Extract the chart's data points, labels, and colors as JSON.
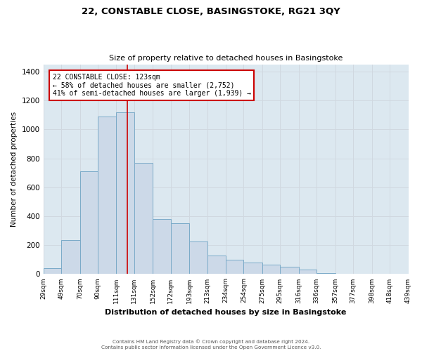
{
  "title1": "22, CONSTABLE CLOSE, BASINGSTOKE, RG21 3QY",
  "title2": "Size of property relative to detached houses in Basingstoke",
  "xlabel": "Distribution of detached houses by size in Basingstoke",
  "ylabel": "Number of detached properties",
  "footer1": "Contains HM Land Registry data © Crown copyright and database right 2024.",
  "footer2": "Contains public sector information licensed under the Open Government Licence v3.0.",
  "annotation_line1": "22 CONSTABLE CLOSE: 123sqm",
  "annotation_line2": "← 58% of detached houses are smaller (2,752)",
  "annotation_line3": "41% of semi-detached houses are larger (1,939) →",
  "property_size": 123,
  "bin_labels": [
    "29sqm",
    "49sqm",
    "70sqm",
    "90sqm",
    "111sqm",
    "131sqm",
    "152sqm",
    "172sqm",
    "193sqm",
    "213sqm",
    "234sqm",
    "254sqm",
    "275sqm",
    "295sqm",
    "316sqm",
    "336sqm",
    "357sqm",
    "377sqm",
    "398sqm",
    "418sqm",
    "439sqm"
  ],
  "bin_edges": [
    29,
    49,
    70,
    90,
    111,
    131,
    152,
    172,
    193,
    213,
    234,
    254,
    275,
    295,
    316,
    336,
    357,
    377,
    398,
    418,
    439
  ],
  "bar_values": [
    40,
    235,
    710,
    1090,
    1120,
    770,
    380,
    350,
    225,
    130,
    100,
    80,
    65,
    50,
    30,
    5,
    0,
    0,
    0,
    0
  ],
  "bar_color": "#ccd9e8",
  "bar_edge_color": "#7aaac8",
  "vline_color": "#cc0000",
  "vline_x": 123,
  "annotation_box_color": "#cc0000",
  "grid_color": "#d0d8e0",
  "bg_color": "#dce8f0",
  "ylim": [
    0,
    1450
  ],
  "yticks": [
    0,
    200,
    400,
    600,
    800,
    1000,
    1200,
    1400
  ]
}
